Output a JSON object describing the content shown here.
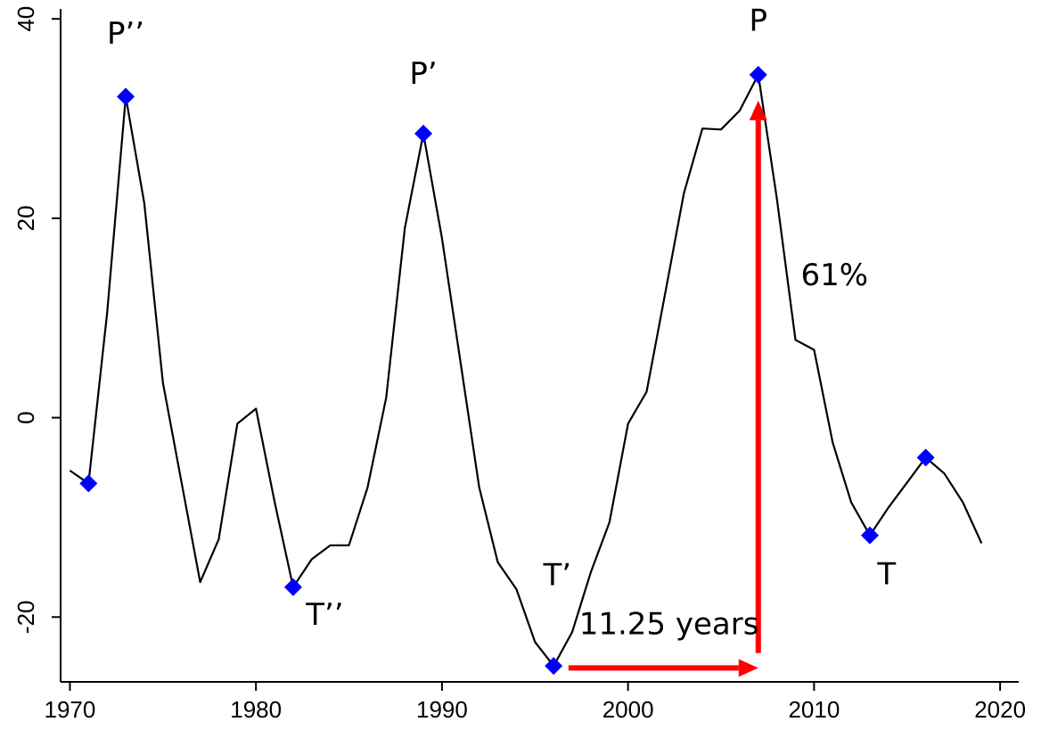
{
  "chart_data": {
    "type": "line",
    "title": "",
    "xlabel": "",
    "ylabel": "",
    "xlim": [
      1969.5,
      2021
    ],
    "ylim": [
      -26.5,
      41
    ],
    "x_ticks": [
      1970,
      1980,
      1990,
      2000,
      2010,
      2020
    ],
    "x_tick_labels": [
      "1970",
      "1980",
      "1990",
      "2000",
      "2010",
      "2020"
    ],
    "y_ticks": [
      -20,
      0,
      20,
      40
    ],
    "y_tick_labels": [
      "-20",
      "0",
      "20",
      "40"
    ],
    "grid": false,
    "legend": "none",
    "line_color": "#000000",
    "marker_color": "#0000ff",
    "arrow_color": "#ff0000",
    "series": [
      {
        "x": [
          1970,
          1971,
          1972,
          1973,
          1974,
          1975,
          1976,
          1977,
          1978,
          1979,
          1980,
          1981,
          1982,
          1983,
          1984,
          1985,
          1986,
          1987,
          1988,
          1989,
          1990,
          1991,
          1992,
          1993,
          1994,
          1995,
          1996,
          1997,
          1998,
          1999,
          2000,
          2001,
          2002,
          2003,
          2004,
          2005,
          2006,
          2007,
          2008,
          2009,
          2010,
          2011,
          2012,
          2013,
          2014,
          2015,
          2016,
          2017,
          2018,
          2019
        ],
        "values": [
          -5.3,
          -6.6,
          10.5,
          32.2,
          21.5,
          3.5,
          -6.5,
          -16.5,
          -12.2,
          -0.6,
          0.9,
          -8.4,
          -17.0,
          -14.2,
          -12.8,
          -12.8,
          -7.0,
          2.0,
          19.0,
          28.5,
          18.0,
          5.5,
          -7.0,
          -14.5,
          -17.2,
          -22.5,
          -24.9,
          -21.5,
          -15.5,
          -10.5,
          -0.6,
          2.6,
          12.5,
          22.5,
          29.0,
          28.9,
          30.8,
          34.4,
          22.0,
          7.8,
          6.8,
          -2.5,
          -8.5,
          -11.8,
          -9.0,
          -6.5,
          -4.0,
          -5.6,
          -8.5,
          -12.6
        ]
      }
    ],
    "turning_points": [
      {
        "x": 1971,
        "y": -6.6
      },
      {
        "x": 1973,
        "y": 32.2
      },
      {
        "x": 1982,
        "y": -17.0
      },
      {
        "x": 1989,
        "y": 28.5
      },
      {
        "x": 1996,
        "y": -24.9
      },
      {
        "x": 2007,
        "y": 34.4
      },
      {
        "x": 2013,
        "y": -11.8
      },
      {
        "x": 2016,
        "y": -4.0
      }
    ],
    "annotations": [
      {
        "text": "P’’",
        "x": 1973,
        "y": 37.5
      },
      {
        "text": "P’",
        "x": 1989,
        "y": 33.5
      },
      {
        "text": "P",
        "x": 2007,
        "y": 38.8
      },
      {
        "text": "T’’",
        "x": 1983.7,
        "y": -20.8
      },
      {
        "text": "T’",
        "x": 1996.2,
        "y": -16.8
      },
      {
        "text": "T",
        "x": 2013.9,
        "y": -16.7
      },
      {
        "text": "11.25 years",
        "x": 2002.2,
        "y": -21.7
      },
      {
        "text": "61%",
        "x": 2011.1,
        "y": 13.3
      }
    ],
    "arrows": [
      {
        "from": [
          1996.8,
          -25.1
        ],
        "to": [
          2007.0,
          -25.1
        ]
      },
      {
        "from": [
          2007.0,
          -23.6
        ],
        "to": [
          2007.0,
          31.8
        ]
      }
    ]
  }
}
